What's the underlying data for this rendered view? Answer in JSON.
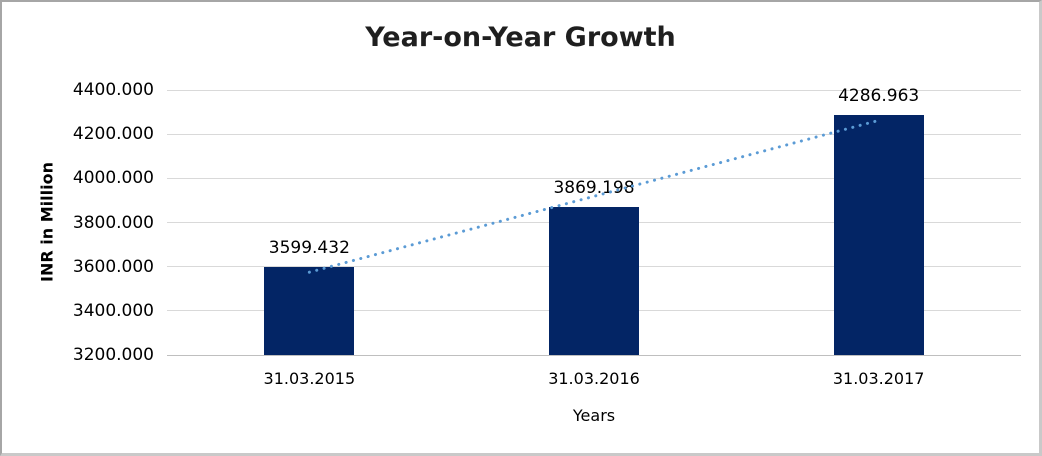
{
  "chart_data": {
    "type": "bar",
    "title": "Year-on-Year Growth",
    "xlabel": "Years",
    "ylabel": "INR in Million",
    "categories": [
      "31.03.2015",
      "31.03.2016",
      "31.03.2017"
    ],
    "values": [
      3599.432,
      3869.198,
      4286.963
    ],
    "data_labels": [
      "3599.432",
      "3869.198",
      "4286.963"
    ],
    "ylim": [
      3200,
      4400
    ],
    "ytick_step": 200,
    "ytick_labels": [
      "3200.000",
      "3400.000",
      "3600.000",
      "3800.000",
      "4000.000",
      "4200.000",
      "4400.000"
    ],
    "grid": true,
    "legend": "none",
    "bar_color": "#032565",
    "gridline_color": "#d9d9d9",
    "axis_line_color": "#bfbfbf",
    "trendline": {
      "type": "linear",
      "style": "dotted",
      "color": "#5B9BD5"
    }
  }
}
